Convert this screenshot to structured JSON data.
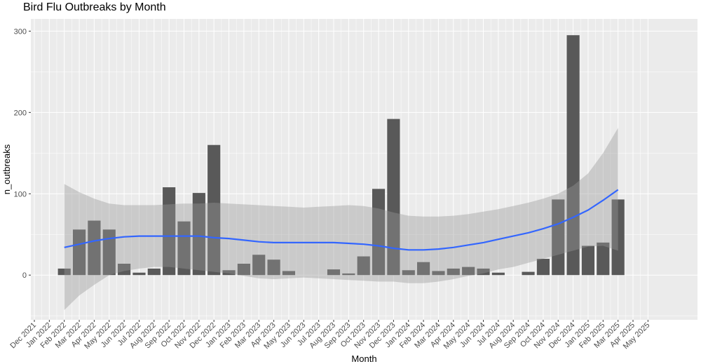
{
  "chart_data": {
    "type": "bar",
    "title": "Bird Flu Outbreaks by Month",
    "xlabel": "Month",
    "ylabel": "n_outbreaks",
    "ylim": [
      -55,
      315
    ],
    "yticks": [
      0,
      100,
      200,
      300
    ],
    "x_tick_labels": [
      "Dec 2021",
      "Jan 2022",
      "Feb 2022",
      "Mar 2022",
      "Apr 2022",
      "May 2022",
      "Jun 2022",
      "Jul 2022",
      "Aug 2022",
      "Sep 2022",
      "Oct 2022",
      "Nov 2022",
      "Dec 2022",
      "Jan 2023",
      "Feb 2023",
      "Mar 2023",
      "Apr 2023",
      "May 2023",
      "Jun 2023",
      "Jul 2023",
      "Aug 2023",
      "Sep 2023",
      "Oct 2023",
      "Nov 2023",
      "Dec 2023",
      "Jan 2024",
      "Feb 2024",
      "Mar 2024",
      "Apr 2024",
      "May 2024",
      "Jun 2024",
      "Jul 2024",
      "Aug 2024",
      "Sep 2024",
      "Oct 2024",
      "Nov 2024",
      "Dec 2024",
      "Jan 2025",
      "Feb 2025",
      "Mar 2025",
      "Apr 2025",
      "May 2025"
    ],
    "bars": [
      {
        "month": "Feb 2022",
        "value": 8
      },
      {
        "month": "Mar 2022",
        "value": 56
      },
      {
        "month": "Apr 2022",
        "value": 67
      },
      {
        "month": "May 2022",
        "value": 56
      },
      {
        "month": "Jun 2022",
        "value": 14
      },
      {
        "month": "Jul 2022",
        "value": 3
      },
      {
        "month": "Aug 2022",
        "value": 8
      },
      {
        "month": "Sep 2022",
        "value": 108
      },
      {
        "month": "Oct 2022",
        "value": 66
      },
      {
        "month": "Nov 2022",
        "value": 101
      },
      {
        "month": "Dec 2022",
        "value": 160
      },
      {
        "month": "Jan 2023",
        "value": 6
      },
      {
        "month": "Feb 2023",
        "value": 14
      },
      {
        "month": "Mar 2023",
        "value": 25
      },
      {
        "month": "Apr 2023",
        "value": 19
      },
      {
        "month": "May 2023",
        "value": 5
      },
      {
        "month": "Aug 2023",
        "value": 7
      },
      {
        "month": "Sep 2023",
        "value": 2
      },
      {
        "month": "Oct 2023",
        "value": 23
      },
      {
        "month": "Nov 2023",
        "value": 106
      },
      {
        "month": "Dec 2023",
        "value": 192
      },
      {
        "month": "Jan 2024",
        "value": 6
      },
      {
        "month": "Feb 2024",
        "value": 16
      },
      {
        "month": "Mar 2024",
        "value": 5
      },
      {
        "month": "Apr 2024",
        "value": 8
      },
      {
        "month": "May 2024",
        "value": 10
      },
      {
        "month": "Jun 2024",
        "value": 8
      },
      {
        "month": "Jul 2024",
        "value": 3
      },
      {
        "month": "Sep 2024",
        "value": 4
      },
      {
        "month": "Oct 2024",
        "value": 20
      },
      {
        "month": "Nov 2024",
        "value": 93
      },
      {
        "month": "Dec 2024",
        "value": 295
      },
      {
        "month": "Jan 2025",
        "value": 36
      },
      {
        "month": "Feb 2025",
        "value": 40
      },
      {
        "month": "Mar 2025",
        "value": 93
      }
    ],
    "smooth": {
      "months": [
        "Feb 2022",
        "Mar 2022",
        "Apr 2022",
        "May 2022",
        "Jun 2022",
        "Jul 2022",
        "Aug 2022",
        "Sep 2022",
        "Oct 2022",
        "Nov 2022",
        "Dec 2022",
        "Jan 2023",
        "Feb 2023",
        "Mar 2023",
        "Apr 2023",
        "May 2023",
        "Jun 2023",
        "Jul 2023",
        "Aug 2023",
        "Sep 2023",
        "Oct 2023",
        "Nov 2023",
        "Dec 2023",
        "Jan 2024",
        "Feb 2024",
        "Mar 2024",
        "Apr 2024",
        "May 2024",
        "Jun 2024",
        "Jul 2024",
        "Aug 2024",
        "Sep 2024",
        "Oct 2024",
        "Nov 2024",
        "Dec 2024",
        "Jan 2025",
        "Feb 2025",
        "Mar 2025"
      ],
      "fit": [
        34,
        38,
        42,
        45,
        47,
        48,
        48,
        48,
        48,
        48,
        46,
        45,
        43,
        41,
        40,
        40,
        40,
        40,
        40,
        39,
        38,
        36,
        33,
        31,
        31,
        32,
        34,
        37,
        40,
        44,
        48,
        52,
        57,
        63,
        71,
        80,
        92,
        105
      ],
      "upper": [
        112,
        102,
        94,
        88,
        86,
        86,
        86,
        87,
        88,
        88,
        89,
        88,
        87,
        86,
        85,
        84,
        83,
        84,
        85,
        86,
        85,
        82,
        77,
        73,
        72,
        72,
        73,
        75,
        78,
        81,
        85,
        89,
        94,
        100,
        110,
        125,
        150,
        181
      ],
      "lower": [
        -43,
        -25,
        -12,
        0,
        5,
        8,
        10,
        10,
        8,
        6,
        4,
        2,
        -1,
        -4,
        -5,
        -4,
        -3,
        -4,
        -5,
        -6,
        -7,
        -8,
        -8,
        -10,
        -10,
        -8,
        -5,
        -1,
        2,
        7,
        10,
        15,
        20,
        25,
        30,
        35,
        36,
        30
      ]
    },
    "grid": true,
    "legend": "none",
    "colors": {
      "panel": "#ebebeb",
      "grid": "#ffffff",
      "bar": "#595959",
      "ribbon": "#999999",
      "line": "#3366ff"
    }
  }
}
